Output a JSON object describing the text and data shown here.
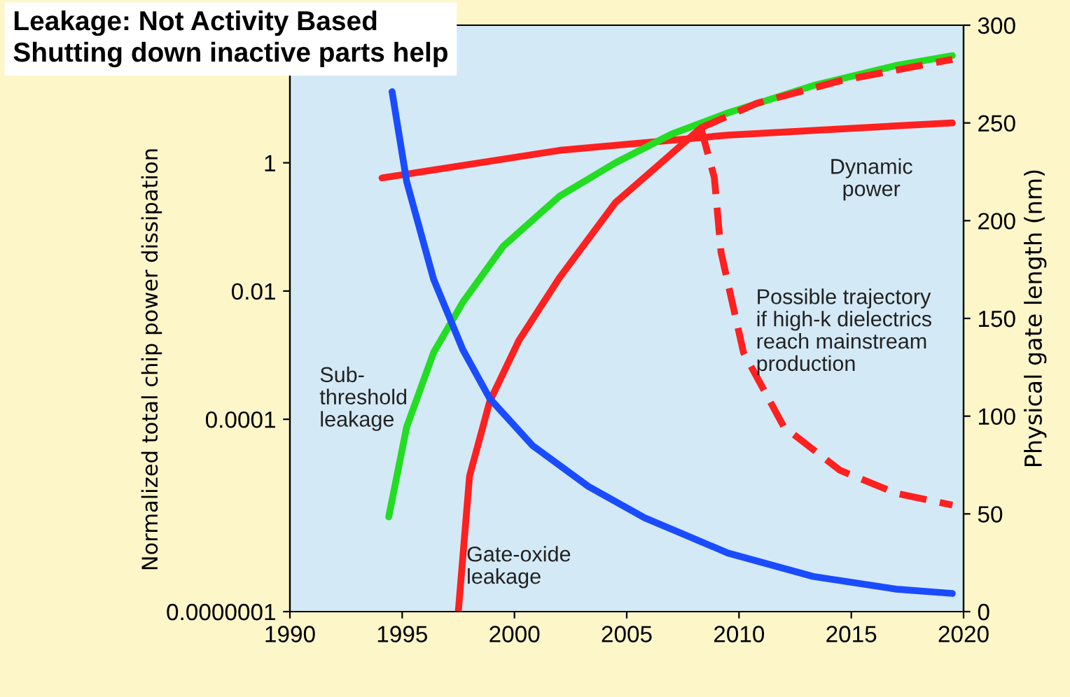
{
  "chart_data": {
    "type": "line",
    "title": "Leakage: Not Activity Based",
    "subtitle": "Shutting down inactive parts help",
    "ylabel": "Normalized total chip power dissipation",
    "y2label": "Physical gate length (nm)",
    "log": "y",
    "legend": false,
    "grid": false,
    "line_style": "solid",
    "marker": "none",
    "xlim": [
      1990,
      2020
    ],
    "xticks": [
      1990,
      1995,
      2000,
      2005,
      2010,
      2015,
      2020
    ],
    "ylim": [
      1e-07,
      140
    ],
    "yticks": [
      {
        "value": 1e-07,
        "label": "0.0000001"
      },
      {
        "value": 0.0001,
        "label": "0.0001"
      },
      {
        "value": 0.01,
        "label": "0.01"
      },
      {
        "value": 1,
        "label": "1"
      }
    ],
    "y2lim": [
      0,
      300
    ],
    "y2ticks": [
      0,
      50,
      100,
      150,
      200,
      250,
      300
    ],
    "series": [
      {
        "color": "#ff2020",
        "x": [
          1994.1,
          2002,
          2009.5,
          2019.5
        ],
        "values": [
          0.58,
          1.56,
          2.7,
          4.2
        ]
      },
      {
        "color": "#22dd22",
        "x": [
          1994.4,
          1995.2,
          1996.4,
          1997.7,
          1999.5,
          2002.0,
          2004.5,
          2007.0,
          2009.5,
          2013.3,
          2017,
          2019.5
        ],
        "values": [
          3e-06,
          7.6e-05,
          0.0011,
          0.0067,
          0.05,
          0.3,
          1.0,
          2.8,
          6,
          16,
          33,
          47
        ]
      },
      {
        "color": "#ff2020",
        "x": [
          1997.5,
          1998.0,
          1998.9,
          2000.2,
          2002,
          2004.5,
          2006.4,
          2008.3
        ],
        "values": [
          1e-07,
          1.3e-05,
          0.00019,
          0.0017,
          0.016,
          0.24,
          0.91,
          3.5
        ]
      },
      {
        "color": "#ff2020",
        "line_style": "dashed",
        "x": [
          2008.3,
          2010.8,
          2014.5,
          2019.5
        ],
        "values": [
          3.5,
          8.5,
          19,
          41
        ]
      },
      {
        "color": "#ff2020",
        "line_style": "dashed",
        "x": [
          2008.3,
          2008.9,
          2009.2,
          2010.2,
          2012.0,
          2014.5,
          2017,
          2019.5
        ],
        "values": [
          3.5,
          0.59,
          0.04,
          0.0011,
          7.6e-05,
          1.6e-05,
          7e-06,
          4.6e-06
        ]
      },
      {
        "color": "#1a4cff",
        "axis": "y2",
        "x": [
          1994.55,
          1995.2,
          1996.4,
          1997.7,
          1998.9,
          2000.8,
          2003.3,
          2005.8,
          2009.5,
          2013.3,
          2017,
          2019.5
        ],
        "values": [
          266,
          220,
          170,
          134,
          109,
          85,
          64,
          48,
          30,
          18,
          11.5,
          9.3
        ]
      }
    ],
    "annotations": [
      "Dynamic\npower",
      "Sub-\nthreshold\nleakage",
      "Gate-oxide\nleakage",
      "Possible trajectory\nif high-k dielectrics\nreach mainstream\nproduction"
    ]
  }
}
